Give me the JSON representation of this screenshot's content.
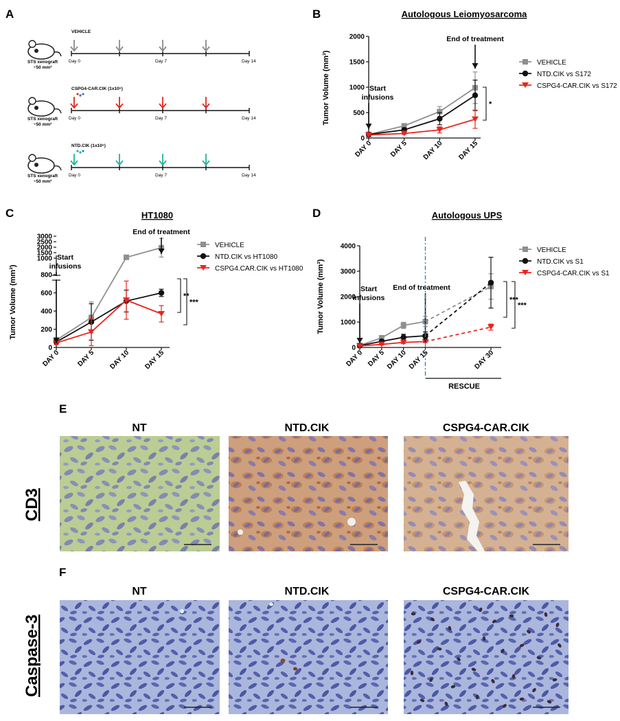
{
  "panels": {
    "A": {
      "letter": "A",
      "rows": [
        {
          "treatment": "VEHICLE",
          "color": "#8a8a8a",
          "model": "STS xenograft",
          "size": "~50 mm³",
          "day_labels": [
            "Day 0",
            "Day 7",
            "Day 14"
          ]
        },
        {
          "treatment": "CSPG4-CAR.CIK (1x10⁶)",
          "color": "#e8251f",
          "model": "STS xenograft",
          "size": "~50 mm³",
          "day_labels": [
            "Day 0",
            "Day 7",
            "Day 14"
          ]
        },
        {
          "treatment": "NTD.CIK (1x10⁶)",
          "color": "#1fb39a",
          "model": "STS xenograft",
          "size": "~50 mm³",
          "day_labels": [
            "Day 0",
            "Day 7",
            "Day 14"
          ]
        }
      ]
    },
    "B": {
      "letter": "B",
      "start_label": "Start",
      "start_label2": "infusions",
      "end_label": "End of treatment",
      "sig": [
        "*"
      ]
    },
    "C": {
      "letter": "C",
      "start_label": "Start",
      "start_label2": "infusions",
      "end_label": "End of treatment",
      "sig": [
        "**",
        "***"
      ]
    },
    "D": {
      "letter": "D",
      "start_label": "Start",
      "start_label2": "infusions",
      "end_label": "End of treatment",
      "rescue_label": "RESCUE",
      "sig": [
        "***",
        "***"
      ]
    },
    "E": {
      "letter": "E",
      "row_label": "CD3",
      "captions": [
        "NT",
        "NTD.CIK",
        "CSPG4-CAR.CIK"
      ]
    },
    "F": {
      "letter": "F",
      "row_label": "Caspase-3",
      "captions": [
        "NT",
        "NTD.CIK",
        "CSPG4-CAR.CIK"
      ]
    }
  },
  "chart_data": [
    {
      "type": "line",
      "title": "Autologous Leiomyosarcoma",
      "ylabel": "Tumor Volume (mm³)",
      "categories": [
        "DAY 0",
        "DAY 5",
        "DAY 10",
        "DAY 15"
      ],
      "yticks": [
        "0",
        "500",
        "1000",
        "1500",
        "2000"
      ],
      "ylim": [
        0,
        2000
      ],
      "legend_position": "right",
      "series": [
        {
          "name": "VEHICLE",
          "color": "#8f8f8f",
          "marker": "square",
          "values": [
            70,
            240,
            520,
            990
          ],
          "err": [
            20,
            40,
            100,
            310
          ]
        },
        {
          "name": "NTD.CIK vs S172",
          "color": "#111111",
          "marker": "circle",
          "values": [
            70,
            160,
            380,
            840
          ],
          "err": [
            20,
            40,
            120,
            300
          ]
        },
        {
          "name": "CSPG4-CAR.CIK vs S172",
          "color": "#e8251f",
          "marker": "triangle",
          "values": [
            60,
            90,
            160,
            370
          ],
          "err": [
            10,
            20,
            60,
            180
          ]
        }
      ]
    },
    {
      "type": "line",
      "title": "HT1080",
      "ylabel": "Tumor Volume (mm³)",
      "categories": [
        "DAY 0",
        "DAY 5",
        "DAY 10",
        "DAY 15"
      ],
      "yticks": [
        "0",
        "200",
        "400",
        "600",
        "800",
        "1000",
        "1500",
        "2000",
        "2500",
        "3000"
      ],
      "ylim": [
        0,
        3000
      ],
      "axis_break": 800,
      "legend_position": "right",
      "series": [
        {
          "name": "VEHICLE",
          "color": "#8f8f8f",
          "marker": "square",
          "values": [
            80,
            330,
            1080,
            1950
          ],
          "err": [
            30,
            170,
            200,
            850
          ]
        },
        {
          "name": "NTD.CIK vs HT1080",
          "color": "#111111",
          "marker": "circle",
          "values": [
            60,
            280,
            510,
            600
          ],
          "err": [
            30,
            200,
            120,
            40
          ]
        },
        {
          "name": "CSPG4.CAR.CIK  vs HT1080",
          "color": "#e8251f",
          "marker": "triangle",
          "values": [
            50,
            170,
            520,
            370
          ],
          "err": [
            20,
            150,
            210,
            90
          ]
        }
      ]
    },
    {
      "type": "line",
      "title": "Autologous UPS",
      "ylabel": "Tumor Volume (mm³)",
      "categories": [
        "DAY 0",
        "DAY 5",
        "DAY 10",
        "DAY 15",
        "DAY 30"
      ],
      "x": [
        0,
        5,
        10,
        15,
        30
      ],
      "yticks": [
        "0",
        "1000",
        "2000",
        "3000",
        "4000"
      ],
      "ylim": [
        0,
        4000
      ],
      "legend_position": "right",
      "series": [
        {
          "name": "VEHICLE",
          "color": "#8f8f8f",
          "marker": "square",
          "values": [
            80,
            380,
            870,
            1020,
            2400
          ],
          "err": [
            20,
            50,
            120,
            200,
            500
          ]
        },
        {
          "name": "NTD.CIK vs S1",
          "color": "#111111",
          "marker": "circle",
          "values": [
            70,
            240,
            400,
            460,
            2550
          ],
          "err": [
            20,
            50,
            120,
            150,
            1000
          ]
        },
        {
          "name": "CSPG4-CAR.CIK  vs S1",
          "color": "#e8251f",
          "marker": "triangle",
          "values": [
            60,
            120,
            200,
            230,
            800
          ],
          "err": [
            10,
            30,
            50,
            40,
            120
          ]
        }
      ]
    }
  ]
}
